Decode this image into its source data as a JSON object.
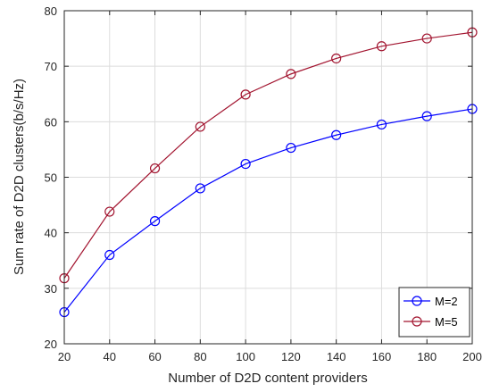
{
  "chart_data": {
    "type": "line",
    "title": "",
    "xlabel": "Number of D2D content providers",
    "ylabel": "Sum rate of D2D clusters(b/s/Hz)",
    "x": [
      20,
      40,
      60,
      80,
      100,
      120,
      140,
      160,
      180,
      200
    ],
    "xlim": [
      20,
      200
    ],
    "ylim": [
      20,
      80
    ],
    "xticks": [
      "20",
      "40",
      "60",
      "80",
      "100",
      "120",
      "140",
      "160",
      "180",
      "200"
    ],
    "yticks": [
      "20",
      "30",
      "40",
      "50",
      "60",
      "70",
      "80"
    ],
    "grid": true,
    "legend_position": "bottom-right",
    "series": [
      {
        "name": "M=2",
        "color": "#0000ff",
        "marker": "circle",
        "values": [
          25.7,
          36.0,
          42.1,
          48.0,
          52.4,
          55.3,
          57.6,
          59.5,
          61.0,
          62.3
        ]
      },
      {
        "name": "M=5",
        "color": "#a2142f",
        "marker": "circle",
        "values": [
          31.8,
          43.8,
          51.6,
          59.1,
          64.9,
          68.6,
          71.4,
          73.6,
          75.0,
          76.1
        ]
      }
    ]
  }
}
